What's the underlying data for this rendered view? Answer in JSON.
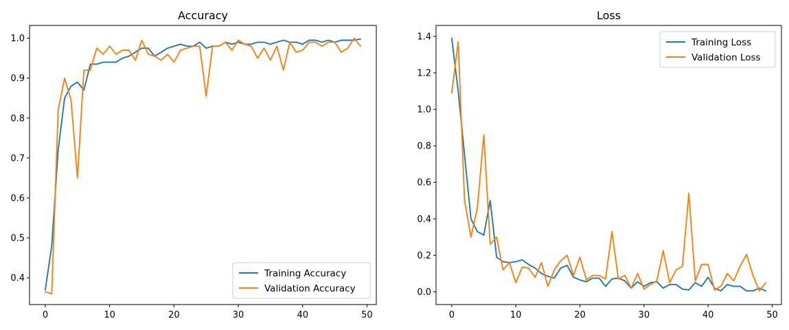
{
  "chart_data": [
    {
      "type": "line",
      "title": "Accuracy",
      "xlabel": "",
      "ylabel": "",
      "xlim": [
        -2.45,
        51.45
      ],
      "ylim": [
        0.333,
        1.032
      ],
      "xticks": [
        "0",
        "10",
        "20",
        "30",
        "40",
        "50"
      ],
      "yticks": [
        "0.4",
        "0.5",
        "0.6",
        "0.7",
        "0.8",
        "0.9",
        "1.0"
      ],
      "grid": false,
      "legend_position": "lower-right",
      "x": [
        0,
        1,
        2,
        3,
        4,
        5,
        6,
        7,
        8,
        9,
        10,
        11,
        12,
        13,
        14,
        15,
        16,
        17,
        18,
        19,
        20,
        21,
        22,
        23,
        24,
        25,
        26,
        27,
        28,
        29,
        30,
        31,
        32,
        33,
        34,
        35,
        36,
        37,
        38,
        39,
        40,
        41,
        42,
        43,
        44,
        45,
        46,
        47,
        48,
        49
      ],
      "series": [
        {
          "name": "Training Accuracy",
          "color": "#1f77b4",
          "values": [
            0.37,
            0.48,
            0.72,
            0.85,
            0.88,
            0.89,
            0.87,
            0.935,
            0.935,
            0.94,
            0.94,
            0.94,
            0.95,
            0.955,
            0.965,
            0.975,
            0.975,
            0.955,
            0.965,
            0.975,
            0.98,
            0.985,
            0.98,
            0.98,
            0.99,
            0.975,
            0.98,
            0.98,
            0.99,
            0.985,
            0.99,
            0.985,
            0.985,
            0.99,
            0.99,
            0.985,
            0.99,
            0.995,
            0.99,
            0.99,
            0.985,
            0.995,
            0.995,
            0.99,
            0.995,
            0.99,
            0.995,
            0.995,
            0.995,
            0.998
          ]
        },
        {
          "name": "Validation Accuracy",
          "color": "#ff7f0e",
          "values": [
            0.365,
            0.36,
            0.82,
            0.9,
            0.845,
            0.65,
            0.92,
            0.92,
            0.975,
            0.96,
            0.98,
            0.96,
            0.97,
            0.97,
            0.945,
            0.995,
            0.96,
            0.955,
            0.945,
            0.96,
            0.94,
            0.97,
            0.975,
            0.98,
            0.98,
            0.855,
            0.98,
            0.98,
            0.99,
            0.97,
            0.995,
            0.985,
            0.98,
            0.95,
            0.975,
            0.945,
            0.98,
            0.92,
            0.99,
            0.965,
            0.97,
            0.99,
            0.99,
            0.98,
            0.99,
            0.99,
            0.965,
            0.975,
            1.0,
            0.98
          ]
        }
      ]
    },
    {
      "type": "line",
      "title": "Loss",
      "xlabel": "",
      "ylabel": "",
      "xlim": [
        -2.45,
        51.45
      ],
      "ylim": [
        -0.07,
        1.46
      ],
      "xticks": [
        "0",
        "10",
        "20",
        "30",
        "40",
        "50"
      ],
      "yticks": [
        "0.0",
        "0.2",
        "0.4",
        "0.6",
        "0.8",
        "1.0",
        "1.2",
        "1.4"
      ],
      "grid": false,
      "legend_position": "upper-right",
      "x": [
        0,
        1,
        2,
        3,
        4,
        5,
        6,
        7,
        8,
        9,
        10,
        11,
        12,
        13,
        14,
        15,
        16,
        17,
        18,
        19,
        20,
        21,
        22,
        23,
        24,
        25,
        26,
        27,
        28,
        29,
        30,
        31,
        32,
        33,
        34,
        35,
        36,
        37,
        38,
        39,
        40,
        41,
        42,
        43,
        44,
        45,
        46,
        47,
        48,
        49
      ],
      "series": [
        {
          "name": "Training Loss",
          "color": "#1f77b4",
          "values": [
            1.39,
            1.1,
            0.75,
            0.4,
            0.33,
            0.31,
            0.5,
            0.19,
            0.165,
            0.16,
            0.165,
            0.175,
            0.15,
            0.13,
            0.1,
            0.085,
            0.075,
            0.13,
            0.145,
            0.08,
            0.065,
            0.055,
            0.075,
            0.075,
            0.03,
            0.07,
            0.075,
            0.06,
            0.02,
            0.055,
            0.03,
            0.05,
            0.055,
            0.02,
            0.04,
            0.04,
            0.015,
            0.01,
            0.05,
            0.03,
            0.08,
            0.02,
            0.005,
            0.04,
            0.03,
            0.03,
            0.005,
            0.005,
            0.02,
            0.005
          ]
        },
        {
          "name": "Validation Loss",
          "color": "#ff7f0e",
          "values": [
            1.09,
            1.37,
            0.5,
            0.3,
            0.46,
            0.86,
            0.26,
            0.3,
            0.12,
            0.16,
            0.05,
            0.135,
            0.13,
            0.08,
            0.16,
            0.03,
            0.12,
            0.17,
            0.2,
            0.09,
            0.19,
            0.065,
            0.09,
            0.09,
            0.07,
            0.33,
            0.07,
            0.09,
            0.02,
            0.1,
            0.015,
            0.04,
            0.06,
            0.225,
            0.05,
            0.12,
            0.14,
            0.54,
            0.06,
            0.15,
            0.15,
            0.01,
            0.03,
            0.1,
            0.06,
            0.14,
            0.205,
            0.09,
            0.005,
            0.05
          ]
        }
      ]
    }
  ]
}
